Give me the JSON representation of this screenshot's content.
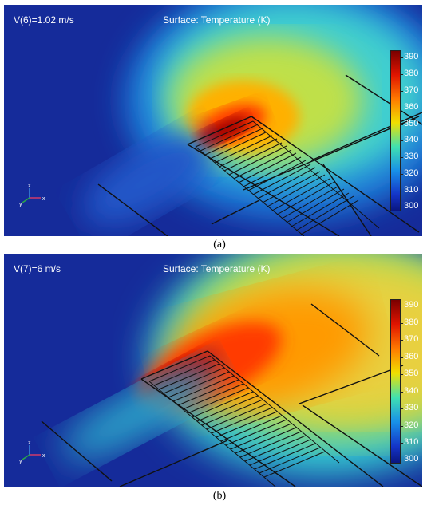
{
  "panels": [
    {
      "velocity_label": "V(6)=1.02 m/s",
      "surface_label": "Surface: Temperature (K)",
      "caption": "(a)",
      "colorbar_ticks": [
        "390",
        "380",
        "370",
        "360",
        "350",
        "340",
        "330",
        "320",
        "310",
        "300"
      ]
    },
    {
      "velocity_label": "V(7)=6 m/s",
      "surface_label": "Surface: Temperature (K)",
      "caption": "(b)",
      "colorbar_ticks": [
        "390",
        "380",
        "370",
        "360",
        "350",
        "340",
        "330",
        "320",
        "310",
        "300"
      ]
    }
  ],
  "axes_triad": {
    "x": "x",
    "y": "y",
    "z": "z"
  }
}
